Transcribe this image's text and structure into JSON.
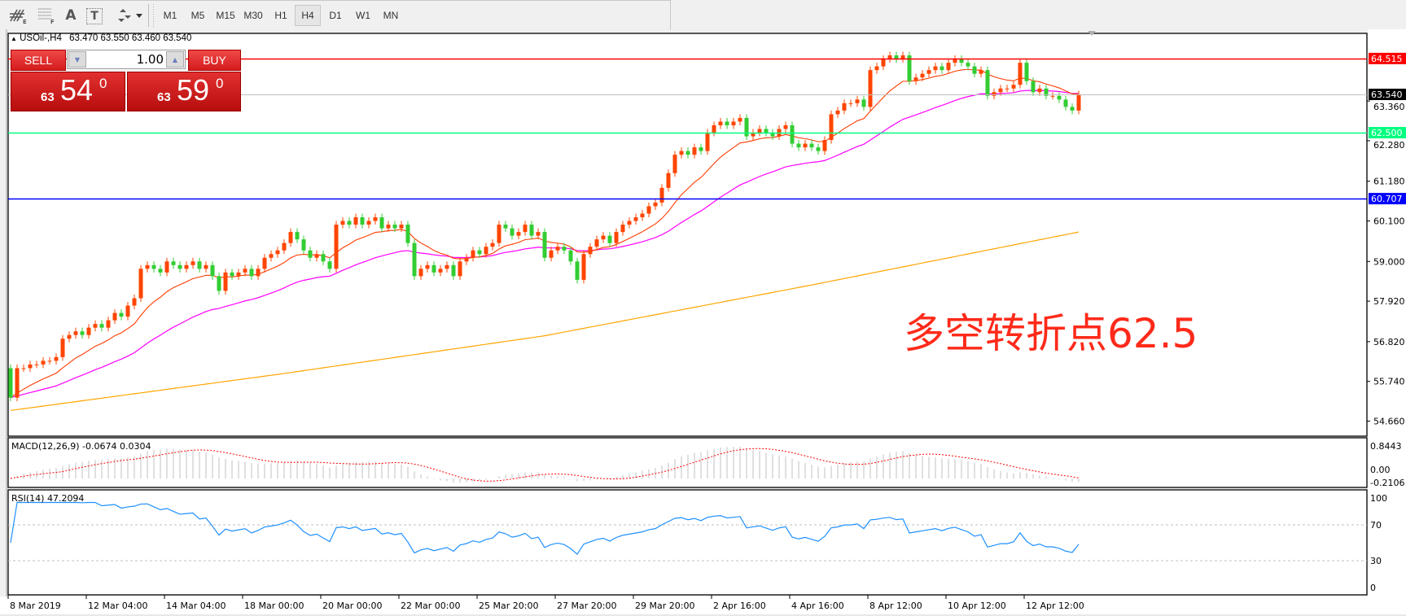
{
  "toolbar": {
    "icons": [
      "expert-objects-icon",
      "fibonacci-icon",
      "text-icon",
      "text-label-icon",
      "arrows-icon"
    ],
    "icon_glyphs": {
      "text": "A",
      "text_label": "T"
    },
    "timeframes": [
      "M1",
      "M5",
      "M15",
      "M30",
      "H1",
      "H4",
      "D1",
      "W1",
      "MN"
    ],
    "selected_timeframe": "H4"
  },
  "header": {
    "symbol": "USOil-,H4",
    "ohlc": "63.470 63.550 63.460 63.540"
  },
  "one_click": {
    "sell_label": "SELL",
    "buy_label": "BUY",
    "lots": "1.00",
    "sell_price": {
      "big_figure": "63",
      "pips": "54",
      "fraction": "0"
    },
    "buy_price": {
      "big_figure": "63",
      "pips": "59",
      "fraction": "0"
    }
  },
  "annotation": "多空转折点62.5",
  "chart_data": {
    "type": "candlestick",
    "colors": {
      "bull": "#ff4500",
      "bear": "#32cd32",
      "ma_fast": "#ff3c00",
      "ma_mid": "#ff00ff",
      "ma_long": "#ffa500",
      "rsi": "#1e90ff",
      "macd_hist": "#c0c0c0",
      "macd_signal": "#ff0000"
    },
    "price_axis": {
      "ticks": [
        "63.360",
        "62.280",
        "61.180",
        "60.100",
        "59.000",
        "57.920",
        "56.820",
        "55.740",
        "54.660"
      ],
      "range": [
        54.4,
        65.2
      ]
    },
    "time_axis": {
      "labels": [
        "8 Mar 2019",
        "12 Mar 04:00",
        "14 Mar 04:00",
        "18 Mar 00:00",
        "20 Mar 00:00",
        "22 Mar 00:00",
        "25 Mar 20:00",
        "27 Mar 20:00",
        "29 Mar 20:00",
        "2 Apr 16:00",
        "4 Apr 16:00",
        "8 Apr 12:00",
        "10 Apr 12:00",
        "12 Apr 12:00"
      ]
    },
    "horizontal_lines": [
      {
        "price": 64.515,
        "label": "64.515",
        "color": "#ff0000",
        "text_color": "#ffffff"
      },
      {
        "price": 63.54,
        "label": "63.540",
        "color": "#c0c0c0",
        "label_bg": "#000000",
        "text_color": "#ffffff"
      },
      {
        "price": 62.5,
        "label": "62.500",
        "color": "#00ff7f",
        "text_color": "#ffffff"
      },
      {
        "price": 60.707,
        "label": "60.707",
        "color": "#0000ff",
        "text_color": "#ffffff"
      }
    ],
    "candles": {
      "first_open": 56.1,
      "close": [
        55.3,
        56.1,
        56.1,
        56.2,
        56.2,
        56.3,
        56.3,
        56.4,
        56.9,
        57.0,
        57.1,
        57.0,
        57.2,
        57.3,
        57.2,
        57.4,
        57.6,
        57.5,
        57.8,
        58.0,
        58.8,
        58.9,
        58.8,
        58.7,
        59.0,
        58.9,
        58.8,
        58.9,
        59.0,
        58.8,
        58.9,
        58.6,
        58.2,
        58.7,
        58.6,
        58.7,
        58.8,
        58.6,
        58.8,
        59.1,
        59.2,
        59.3,
        59.5,
        59.8,
        59.6,
        59.3,
        59.1,
        59.2,
        59.0,
        58.8,
        60.0,
        60.1,
        60.0,
        60.2,
        60.0,
        60.1,
        60.2,
        59.9,
        60.0,
        59.9,
        60.0,
        59.5,
        58.6,
        58.8,
        58.9,
        58.7,
        58.8,
        58.9,
        58.6,
        59.0,
        59.1,
        59.3,
        59.2,
        59.4,
        59.5,
        60.0,
        59.9,
        59.7,
        59.8,
        60.0,
        59.7,
        59.8,
        59.1,
        59.3,
        59.4,
        59.3,
        59.0,
        58.5,
        59.2,
        59.4,
        59.6,
        59.7,
        59.5,
        59.8,
        60.0,
        60.1,
        60.2,
        60.3,
        60.5,
        60.6,
        61.0,
        61.4,
        61.9,
        62.0,
        61.9,
        62.1,
        62.0,
        62.5,
        62.7,
        62.8,
        62.7,
        62.8,
        62.9,
        62.4,
        62.5,
        62.6,
        62.5,
        62.4,
        62.6,
        62.7,
        62.2,
        62.1,
        62.2,
        62.1,
        62.0,
        62.3,
        63.0,
        63.1,
        63.3,
        63.3,
        63.4,
        63.2,
        64.2,
        64.3,
        64.5,
        64.6,
        64.5,
        64.6,
        63.9,
        64.0,
        64.1,
        64.2,
        64.3,
        64.2,
        64.4,
        64.5,
        64.4,
        64.3,
        64.1,
        64.2,
        63.5,
        63.6,
        63.7,
        63.7,
        63.8,
        64.4,
        63.9,
        63.6,
        63.7,
        63.5,
        63.5,
        63.4,
        63.2,
        63.1,
        63.54
      ]
    },
    "ma_long_samples": [
      54.95,
      55.93,
      56.98,
      58.36,
      59.8
    ],
    "macd": {
      "label": "MACD(12,26,9) -0.0674 0.0304",
      "max_label": "0.8443",
      "zero_label": "0.00",
      "min_label": "-0.2106",
      "range": [
        -0.2106,
        0.8443
      ]
    },
    "rsi": {
      "label": "RSI(14) 47.2094",
      "levels": [
        70,
        30
      ],
      "ticks": [
        "100",
        "70",
        "30",
        "0"
      ],
      "range": [
        0,
        100
      ]
    }
  }
}
